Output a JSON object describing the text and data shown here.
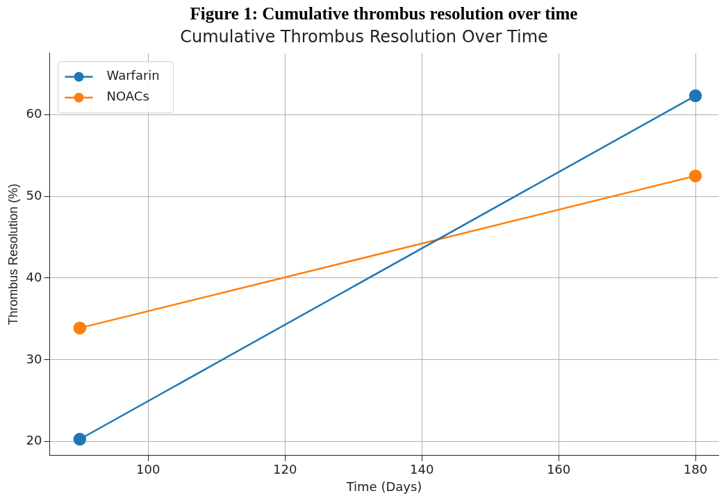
{
  "chart_data": {
    "type": "line",
    "title": "Figure 1:  Cumulative thrombus resolution over time",
    "subtitle": "Cumulative Thrombus Resolution Over Time",
    "xlabel": "Time (Days)",
    "ylabel": "Thrombus Resolution (%)",
    "x": [
      90,
      180
    ],
    "series": [
      {
        "name": "Warfarin",
        "color": "#1f77b4",
        "values": [
          20.3,
          62.3
        ]
      },
      {
        "name": "NOACs",
        "color": "#ff7f0e",
        "values": [
          33.9,
          52.5
        ]
      }
    ],
    "xlim": [
      85.6,
      183.4
    ],
    "xticks": [
      100,
      120,
      140,
      160,
      180
    ],
    "ylim": [
      18.3,
      67.5
    ],
    "yticks": [
      20,
      30,
      40,
      50,
      60
    ],
    "grid": true,
    "legend": "top left",
    "marker": "circle",
    "line_style": "solid"
  }
}
